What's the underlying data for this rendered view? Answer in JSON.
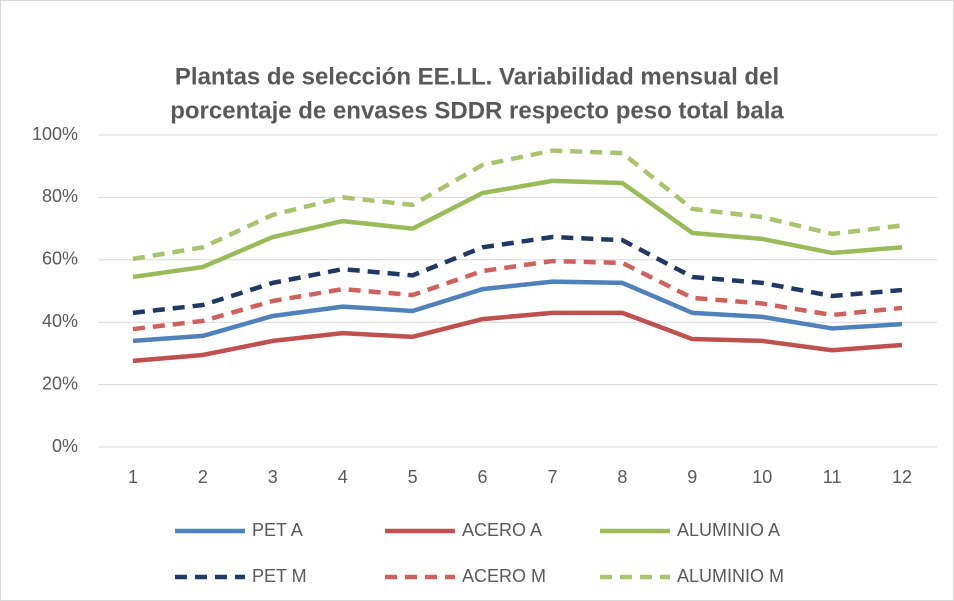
{
  "chart_data": {
    "type": "line",
    "title": [
      "Plantas de selección EE.LL. Variabilidad mensual del",
      "porcentaje de envases SDDR respecto peso total bala"
    ],
    "categories": [
      "1",
      "2",
      "3",
      "4",
      "5",
      "6",
      "7",
      "8",
      "9",
      "10",
      "11",
      "12"
    ],
    "ylim": [
      0,
      100
    ],
    "yticks": [
      {
        "value": 0,
        "label": "0%"
      },
      {
        "value": 20,
        "label": "20%"
      },
      {
        "value": 40,
        "label": "40%"
      },
      {
        "value": 60,
        "label": "60%"
      },
      {
        "value": 80,
        "label": "80%"
      },
      {
        "value": 100,
        "label": "100%"
      }
    ],
    "grid": true,
    "legend": "bottom",
    "series": [
      {
        "name": "PET A",
        "color": "#4f81bd",
        "dash": false,
        "values": [
          34,
          35.6,
          42,
          45,
          43.6,
          50.6,
          53,
          52.6,
          43,
          41.7,
          38,
          39.4
        ]
      },
      {
        "name": "ACERO A",
        "color": "#c0504d",
        "dash": false,
        "values": [
          27.6,
          29.5,
          34,
          36.5,
          35.3,
          41,
          43,
          43,
          34.6,
          34,
          31,
          32.7
        ]
      },
      {
        "name": "ALUMINIO A",
        "color": "#9bbb59",
        "dash": false,
        "values": [
          54.5,
          57.7,
          67.3,
          72.4,
          70,
          81.4,
          85.3,
          84.6,
          68.6,
          66.7,
          62.2,
          64
        ]
      },
      {
        "name": "PET M",
        "color": "#1f3864",
        "dash": true,
        "values": [
          43,
          45.5,
          52.6,
          57,
          55,
          64,
          67.3,
          66.3,
          54.5,
          52.6,
          48.4,
          50.3
        ]
      },
      {
        "name": "ACERO M",
        "color": "#d0605c",
        "dash": true,
        "values": [
          37.8,
          40.4,
          46.8,
          50.6,
          48.7,
          56.4,
          59.6,
          59,
          47.8,
          46,
          42.3,
          44.6
        ]
      },
      {
        "name": "ALUMINIO M",
        "color": "#a9c46c",
        "dash": true,
        "values": [
          60.3,
          64,
          74.4,
          80,
          77.6,
          90.4,
          95,
          94.2,
          76.3,
          73.7,
          68.3,
          71
        ]
      }
    ]
  }
}
